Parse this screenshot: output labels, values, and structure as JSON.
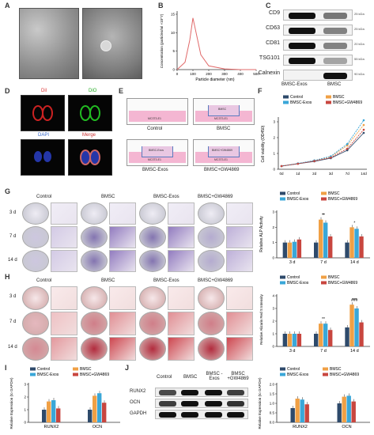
{
  "panels": {
    "A": "A",
    "B": "B",
    "C": "C",
    "D": "D",
    "E": "E",
    "F": "F",
    "G": "G",
    "H": "H",
    "I": "I",
    "J": "J"
  },
  "panelB": {
    "ylabel": "Concentration (particles/ml ×10^7)",
    "xlabel": "Particle diameter (nm)"
  },
  "panelC": {
    "markers": [
      "CD9",
      "CD63",
      "CD81",
      "TSG101",
      "Calnexin"
    ],
    "kda": [
      "25 kDa",
      "25 kDa",
      "20 kDa",
      "55 kDa",
      "90 kDa"
    ],
    "lanes": [
      "BMSC-Exos",
      "BMSC"
    ]
  },
  "panelD": {
    "labels": [
      "Dil",
      "DiO",
      "DAPI",
      "Merge"
    ]
  },
  "panelE": {
    "groups": [
      "Control",
      "BMSC",
      "BMSC-Exos",
      "BMSC+GW4869"
    ],
    "cell": "MC3T3-E1"
  },
  "panelF": {
    "ylabel": "Cell viability (OD450)"
  },
  "panelG": {
    "groups": [
      "Control",
      "BMSC",
      "BMSC-Exos",
      "BMSC+GW4869"
    ],
    "rows": [
      "3 d",
      "7 d",
      "14 d"
    ],
    "ylabel": "Relative ALP Activity"
  },
  "panelH": {
    "groups": [
      "Control",
      "BMSC",
      "BMSC-Exos",
      "BMSC+GW4869"
    ],
    "rows": [
      "3 d",
      "7 d",
      "14 d"
    ],
    "ylabel": "Relative Alizarin Red S Intensity"
  },
  "panelI": {
    "ylabel": "Relative Expression (to GAPDH)"
  },
  "panelJ": {
    "lanes": [
      "Control",
      "BMSC",
      "BMSC -Exos",
      "BMSC +GW4869"
    ],
    "proteins": [
      "RUNX2",
      "OCN",
      "GAPDH"
    ],
    "ylabel": "Relative Expression (to GAPDH)"
  },
  "legend": [
    "Control",
    "BMSC",
    "BMSC-Exos",
    "BMSC+GW4869"
  ],
  "colors": {
    "control": "#2e4a6b",
    "bmsc": "#f0a045",
    "exos": "#3aa7d8",
    "gw": "#c8463f"
  },
  "chart_data": [
    {
      "type": "line",
      "panel": "B",
      "xlabel": "Particle diameter (nm)",
      "ylabel": "Concentration (particles/ml ×10^7)",
      "x": [
        0,
        50,
        80,
        100,
        120,
        150,
        200,
        300,
        400,
        500
      ],
      "series": [
        {
          "values": [
            0,
            2,
            8,
            14,
            10,
            4,
            1,
            0.2,
            0,
            0
          ]
        }
      ],
      "xticks": [
        "0",
        "100",
        "200",
        "300",
        "400",
        "500"
      ],
      "yticks": [
        "0",
        "5",
        "10",
        "15"
      ]
    },
    {
      "type": "line",
      "panel": "F",
      "ylabel": "Cell viability (OD450)",
      "x": [
        "0d",
        "1d",
        "2d",
        "3d",
        "7d",
        "14d"
      ],
      "series": [
        {
          "name": "Control",
          "values": [
            0.2,
            0.35,
            0.5,
            0.7,
            1.2,
            2.3
          ]
        },
        {
          "name": "BMSC",
          "values": [
            0.2,
            0.36,
            0.55,
            0.8,
            1.5,
            2.8
          ]
        },
        {
          "name": "BMSC-Exos",
          "values": [
            0.2,
            0.37,
            0.56,
            0.82,
            1.6,
            3.1
          ]
        },
        {
          "name": "BMSC+GW4869",
          "values": [
            0.2,
            0.35,
            0.52,
            0.74,
            1.3,
            2.5
          ]
        }
      ],
      "yticks": [
        "0",
        "1",
        "2",
        "3"
      ]
    },
    {
      "type": "bar",
      "panel": "G",
      "categories": [
        "3 d",
        "7 d",
        "14 d"
      ],
      "ylabel": "Relative ALP Activity",
      "ylim": [
        0,
        3
      ],
      "yticks": [
        "0",
        "1",
        "2",
        "3"
      ],
      "series": [
        {
          "name": "Control",
          "values": [
            1.0,
            1.0,
            1.0
          ]
        },
        {
          "name": "BMSC",
          "values": [
            1.0,
            2.5,
            2.0
          ]
        },
        {
          "name": "BMSC-Exos",
          "values": [
            1.05,
            2.3,
            1.9
          ]
        },
        {
          "name": "BMSC+GW4869",
          "values": [
            1.2,
            1.4,
            1.4
          ]
        }
      ],
      "annotations": [
        {
          "category": "7 d",
          "text": "**"
        },
        {
          "category": "7 d",
          "text": "*"
        },
        {
          "category": "14 d",
          "text": "*"
        }
      ]
    },
    {
      "type": "bar",
      "panel": "H",
      "categories": [
        "3 d",
        "7 d",
        "14 d"
      ],
      "ylabel": "Relative Alizarin Red S Intensity",
      "ylim": [
        0,
        4
      ],
      "yticks": [
        "0",
        "1",
        "2",
        "3",
        "4"
      ],
      "series": [
        {
          "name": "Control",
          "values": [
            1.0,
            1.0,
            1.5
          ]
        },
        {
          "name": "BMSC",
          "values": [
            1.0,
            1.8,
            3.3
          ]
        },
        {
          "name": "BMSC-Exos",
          "values": [
            1.0,
            1.8,
            3.0
          ]
        },
        {
          "name": "BMSC+GW4869",
          "values": [
            1.0,
            1.3,
            1.9
          ]
        }
      ],
      "annotations": [
        {
          "category": "7 d",
          "text": "**"
        },
        {
          "category": "14 d",
          "text": "***"
        },
        {
          "category": "14 d",
          "text": "###"
        }
      ]
    },
    {
      "type": "bar",
      "panel": "I",
      "categories": [
        "RUNX2",
        "OCN"
      ],
      "ylabel": "Relative Expression (to GAPDH)",
      "ylim": [
        0,
        3
      ],
      "yticks": [
        "0",
        "1",
        "2",
        "3"
      ],
      "series": [
        {
          "name": "Control",
          "values": [
            1.0,
            1.0
          ]
        },
        {
          "name": "BMSC",
          "values": [
            1.65,
            2.1
          ]
        },
        {
          "name": "BMSC-Exos",
          "values": [
            1.75,
            2.3
          ]
        },
        {
          "name": "BMSC+GW4869",
          "values": [
            1.1,
            1.55
          ]
        }
      ]
    },
    {
      "type": "bar",
      "panel": "J",
      "categories": [
        "RUNX2",
        "OCN"
      ],
      "ylabel": "Relative Expression (to GAPDH)",
      "ylim": [
        0,
        2.0
      ],
      "yticks": [
        "0.0",
        "0.5",
        "1.0",
        "1.5",
        "2.0"
      ],
      "series": [
        {
          "name": "Control",
          "values": [
            0.75,
            1.0
          ]
        },
        {
          "name": "BMSC",
          "values": [
            1.25,
            1.35
          ]
        },
        {
          "name": "BMSC-Exos",
          "values": [
            1.2,
            1.4
          ]
        },
        {
          "name": "BMSC+GW4869",
          "values": [
            0.95,
            1.1
          ]
        }
      ]
    }
  ]
}
